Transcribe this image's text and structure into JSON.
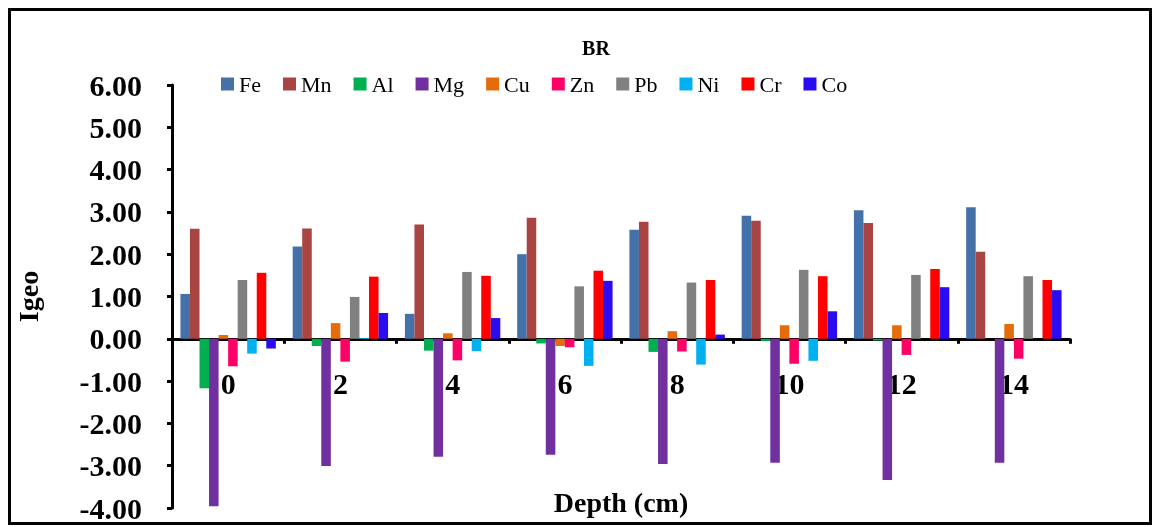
{
  "chart_data": {
    "type": "bar",
    "title": "BR",
    "xlabel": "Depth (cm)",
    "ylabel": "Igeo",
    "categories": [
      "0",
      "2",
      "4",
      "6",
      "8",
      "10",
      "12",
      "14"
    ],
    "series": [
      {
        "name": "Fe",
        "color": "#4472a8",
        "values": [
          1.06,
          2.18,
          0.59,
          2.0,
          2.58,
          2.91,
          3.04,
          3.11
        ]
      },
      {
        "name": "Mn",
        "color": "#a84442",
        "values": [
          2.6,
          2.61,
          2.7,
          2.86,
          2.77,
          2.79,
          2.74,
          2.06
        ]
      },
      {
        "name": "Al",
        "color": "#00b050",
        "values": [
          -1.17,
          -0.17,
          -0.28,
          -0.11,
          -0.31,
          -0.05,
          -0.04,
          0
        ]
      },
      {
        "name": "Mg",
        "color": "#7030a0",
        "values": [
          -3.96,
          -3.01,
          -2.79,
          -2.74,
          -2.96,
          -2.93,
          -3.34,
          -2.93
        ]
      },
      {
        "name": "Cu",
        "color": "#e46c0a",
        "values": [
          0.09,
          0.37,
          0.13,
          -0.17,
          0.18,
          0.32,
          0.32,
          0.35
        ]
      },
      {
        "name": "Zn",
        "color": "#ff0066",
        "values": [
          -0.65,
          -0.54,
          -0.51,
          -0.2,
          -0.3,
          -0.59,
          -0.38,
          -0.47
        ]
      },
      {
        "name": "Pb",
        "color": "#808080",
        "values": [
          1.39,
          0.99,
          1.58,
          1.24,
          1.33,
          1.63,
          1.51,
          1.48
        ]
      },
      {
        "name": "Ni",
        "color": "#00b0f0",
        "values": [
          -0.35,
          0.02,
          -0.29,
          -0.64,
          -0.61,
          -0.52,
          0,
          0
        ]
      },
      {
        "name": "Cr",
        "color": "#ff0000",
        "values": [
          1.56,
          1.47,
          1.49,
          1.61,
          1.39,
          1.48,
          1.65,
          1.39
        ]
      },
      {
        "name": "Co",
        "color": "#2a0cf0",
        "values": [
          -0.23,
          0.61,
          0.49,
          1.37,
          0.1,
          0.65,
          1.22,
          1.15
        ]
      }
    ],
    "ylim": [
      -4,
      6
    ],
    "yticks": [
      {
        "value": -4,
        "label": "-4.00"
      },
      {
        "value": -3,
        "label": "-3.00"
      },
      {
        "value": -2,
        "label": "-2.00"
      },
      {
        "value": -1,
        "label": "-1.00"
      },
      {
        "value": 0,
        "label": "0.00"
      },
      {
        "value": 1,
        "label": "1.00"
      },
      {
        "value": 2,
        "label": "2.00"
      },
      {
        "value": 3,
        "label": "3.00"
      },
      {
        "value": 4,
        "label": "4.00"
      },
      {
        "value": 5,
        "label": "5.00"
      },
      {
        "value": 6,
        "label": "6.00"
      }
    ],
    "grid": false,
    "legend": "top"
  }
}
